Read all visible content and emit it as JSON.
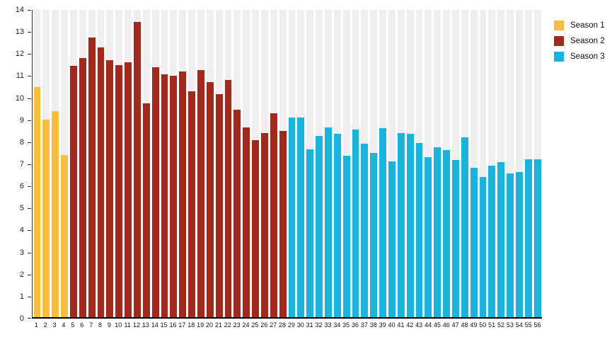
{
  "chart_data": {
    "type": "bar",
    "title": "",
    "xlabel": "",
    "ylabel": "",
    "ylim": [
      0,
      14
    ],
    "yticks": [
      0,
      1,
      2,
      3,
      4,
      5,
      6,
      7,
      8,
      9,
      10,
      11,
      12,
      13,
      14
    ],
    "categories": [
      1,
      2,
      3,
      4,
      5,
      6,
      7,
      8,
      9,
      10,
      11,
      12,
      13,
      14,
      15,
      16,
      17,
      18,
      19,
      20,
      21,
      22,
      23,
      24,
      25,
      26,
      27,
      28,
      29,
      30,
      31,
      32,
      33,
      34,
      35,
      36,
      37,
      38,
      39,
      40,
      41,
      42,
      43,
      44,
      45,
      46,
      47,
      48,
      49,
      50,
      51,
      52,
      53,
      54,
      55,
      56
    ],
    "grid": "column-tracks",
    "background_track_color": "#efefef",
    "legend_position": "top-right",
    "series": [
      {
        "name": "Season 1",
        "color": "#FABD3C",
        "values": [
          10.5,
          9.0,
          9.4,
          7.4
        ]
      },
      {
        "name": "Season 2",
        "color": "#A3271A",
        "values": [
          11.45,
          11.8,
          12.75,
          12.3,
          11.7,
          11.5,
          11.6,
          13.45,
          9.75,
          11.4,
          11.05,
          11.0,
          11.2,
          10.3,
          11.25,
          10.7,
          10.15,
          10.8,
          9.45,
          8.65,
          8.05,
          8.4,
          9.3,
          8.5
        ]
      },
      {
        "name": "Season 3",
        "color": "#17B4DF",
        "values": [
          9.1,
          9.1,
          7.65,
          8.25,
          8.65,
          8.35,
          7.35,
          8.55,
          7.9,
          7.5,
          8.6,
          7.1,
          8.4,
          8.35,
          7.95,
          7.3,
          7.75,
          7.6,
          7.15,
          8.2,
          6.8,
          6.4,
          6.9,
          7.05,
          6.55,
          6.6,
          7.2,
          7.2
        ]
      }
    ]
  }
}
